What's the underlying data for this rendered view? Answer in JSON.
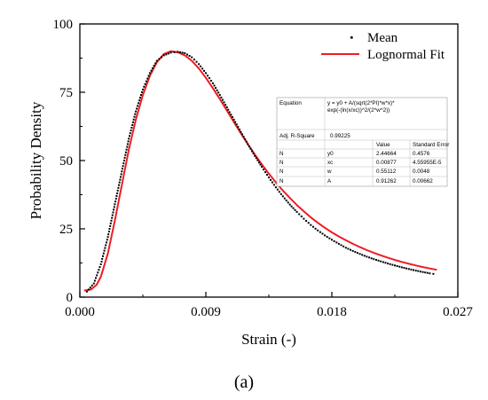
{
  "chart_data": {
    "type": "line",
    "xlabel": "Strain (-)",
    "ylabel": "Probability Density",
    "xlim": [
      0,
      0.027
    ],
    "ylim": [
      0,
      100
    ],
    "x_ticks": [
      "0.000",
      "0.009",
      "0.018",
      "0.027"
    ],
    "y_ticks": [
      "0",
      "25",
      "50",
      "75",
      "100"
    ],
    "grid": false,
    "legend_position": "top-right",
    "series": [
      {
        "name": "Mean",
        "style": "dotted",
        "color": "#000000",
        "x": [
          0.0005,
          0.001,
          0.0015,
          0.002,
          0.0025,
          0.003,
          0.0035,
          0.004,
          0.0045,
          0.005,
          0.0055,
          0.006,
          0.0065,
          0.007,
          0.0075,
          0.008,
          0.0085,
          0.009,
          0.0095,
          0.01,
          0.0105,
          0.011,
          0.0115,
          0.012,
          0.0125,
          0.013,
          0.0135,
          0.014,
          0.0145,
          0.015,
          0.0155,
          0.016,
          0.0165,
          0.017,
          0.0175,
          0.018,
          0.0185,
          0.019,
          0.0195,
          0.02,
          0.0205,
          0.021,
          0.0215,
          0.022,
          0.0225,
          0.023,
          0.0235,
          0.024,
          0.0245,
          0.025,
          0.0255
        ],
        "y": [
          2,
          5,
          12,
          22,
          34,
          46,
          58,
          68,
          76,
          82,
          86.5,
          88.5,
          89.5,
          89.8,
          89.3,
          87.8,
          85.3,
          82,
          78.3,
          74,
          69.5,
          65,
          60.5,
          56,
          51.7,
          47.7,
          43.8,
          40.2,
          36.9,
          33.9,
          31.2,
          28.7,
          26.4,
          24.4,
          22.6,
          21,
          19.5,
          18.1,
          16.9,
          15.8,
          14.8,
          13.9,
          13.1,
          12.3,
          11.6,
          10.9,
          10.3,
          9.7,
          9.2,
          8.7,
          8.3
        ]
      },
      {
        "name": "Lognormal Fit",
        "style": "solid",
        "color": "#ee1c25",
        "x": [
          0.0003,
          0.0008,
          0.0012,
          0.0015,
          0.002,
          0.0025,
          0.003,
          0.0035,
          0.004,
          0.0045,
          0.005,
          0.0055,
          0.006,
          0.0065,
          0.007,
          0.0075,
          0.008,
          0.0085,
          0.009,
          0.0095,
          0.01,
          0.0105,
          0.011,
          0.0115,
          0.012,
          0.0125,
          0.013,
          0.0135,
          0.014,
          0.0145,
          0.015,
          0.0155,
          0.016,
          0.0165,
          0.017,
          0.0175,
          0.018,
          0.0185,
          0.019,
          0.0195,
          0.02,
          0.0205,
          0.021,
          0.0215,
          0.022,
          0.0225,
          0.023,
          0.0235,
          0.024,
          0.0245,
          0.025,
          0.0255
        ],
        "y": [
          2.4,
          2.8,
          4.5,
          7.5,
          16,
          28,
          41,
          54,
          65,
          74,
          81,
          86,
          89,
          90,
          89.6,
          88.5,
          86.5,
          83.7,
          80.3,
          76.5,
          72.5,
          68.3,
          64.1,
          60,
          56,
          52.2,
          48.6,
          45.2,
          42,
          39,
          36.3,
          33.7,
          31.4,
          29.2,
          27.2,
          25.4,
          23.7,
          22.2,
          20.8,
          19.5,
          18.3,
          17.2,
          16.2,
          15.3,
          14.4,
          13.6,
          12.9,
          12.2,
          11.6,
          11,
          10.5,
          10
        ]
      }
    ]
  },
  "fit_table": {
    "equation_label": "Equation",
    "equation_lines": [
      "y = y0 + A/(sqrt(2*PI)*w*x)*",
      "exp(-(ln(x/xc))^2/(2*w^2))"
    ],
    "adj_r_label": "Adj. R-Square",
    "adj_r_value": "0.99225",
    "header_value": "Value",
    "header_error": "Standard Error",
    "rows": [
      {
        "n": "N",
        "param": "y0",
        "value": "2.44664",
        "error": "0.4576"
      },
      {
        "n": "N",
        "param": "xc",
        "value": "0.00877",
        "error": "4.55955E-5"
      },
      {
        "n": "N",
        "param": "w",
        "value": "0.55112",
        "error": "0.0048"
      },
      {
        "n": "N",
        "param": "A",
        "value": "0.91262",
        "error": "0.00662"
      }
    ]
  },
  "caption": "(a)"
}
